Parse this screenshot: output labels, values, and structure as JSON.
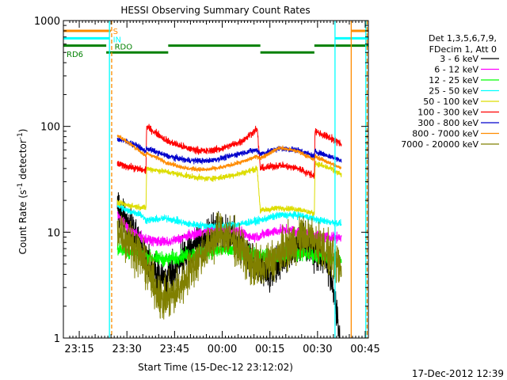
{
  "chart_data": {
    "type": "line",
    "title": "HESSI Observing Summary Count Rates",
    "xlabel": "Start Time (15-Dec-12 23:12:02)",
    "ylabel_main": "Count Rate (s",
    "ylabel_sup1": "-1",
    "ylabel_mid": " detector",
    "ylabel_sup2": "-1",
    "ylabel_end": ")",
    "yscale": "log",
    "ylim": [
      1,
      1000
    ],
    "xlim_minutes": [
      -2,
      94
    ],
    "x_ticks": [
      {
        "m": 3,
        "label": "23:15"
      },
      {
        "m": 18,
        "label": "23:30"
      },
      {
        "m": 33,
        "label": "23:45"
      },
      {
        "m": 48,
        "label": "00:00"
      },
      {
        "m": 63,
        "label": "00:15"
      },
      {
        "m": 78,
        "label": "00:30"
      },
      {
        "m": 93,
        "label": "00:45"
      }
    ],
    "y_ticks": [
      {
        "v": 1,
        "label": "1"
      },
      {
        "v": 10,
        "label": "10"
      },
      {
        "v": 100,
        "label": "100"
      },
      {
        "v": 1000,
        "label": "1000"
      }
    ],
    "footer_date": "17-Dec-2012 12:39",
    "legend": {
      "header": [
        "Det 1,3,5,6,7,9,",
        "FDecim 1, Att 0"
      ],
      "entries": [
        {
          "label": "3 - 6 keV",
          "color": "#000000"
        },
        {
          "label": "6 - 12 keV",
          "color": "#ff00ff"
        },
        {
          "label": "12 - 25 keV",
          "color": "#00ff00"
        },
        {
          "label": "25 - 50 keV",
          "color": "#00ffff"
        },
        {
          "label": "50 - 100 keV",
          "color": "#dddd00"
        },
        {
          "label": "100 - 300 keV",
          "color": "#ff0000"
        },
        {
          "label": "300 - 800 keV",
          "color": "#0000cc"
        },
        {
          "label": "800 - 7000 keV",
          "color": "#ff8c00"
        },
        {
          "label": "7000 - 20000 keV",
          "color": "#808000"
        }
      ]
    },
    "flag_labels": [
      {
        "label": "S",
        "color": "#ff8c00"
      },
      {
        "label": "IN",
        "color": "#00ffff"
      },
      {
        "label": "RDO",
        "color": "#008000"
      },
      {
        "label": "RD6",
        "color": "#008000"
      }
    ],
    "flags": {
      "saa": {
        "color": "#ff8c00",
        "intervals": [
          [
            -2,
            13
          ],
          [
            88.5,
            94
          ]
        ]
      },
      "night": {
        "color": "#00ffff",
        "intervals": [
          [
            -2,
            12.5
          ],
          [
            83.5,
            94
          ]
        ]
      },
      "rdo": {
        "color": "#008000",
        "intervals": [
          [
            -2,
            11.5
          ],
          [
            31,
            60
          ],
          [
            77,
            94
          ]
        ]
      },
      "rd6": {
        "color": "#008000",
        "intervals": [
          [
            11.5,
            31
          ],
          [
            60,
            77
          ]
        ]
      }
    },
    "vlines": [
      {
        "m": 12.5,
        "color": "#00ffff",
        "dash": false
      },
      {
        "m": 13.2,
        "color": "#ff8c00",
        "dash": true
      },
      {
        "m": 83.5,
        "color": "#00ffff",
        "dash": false
      },
      {
        "m": 88.6,
        "color": "#ff8c00",
        "dash": false
      },
      {
        "m": 93.2,
        "color": "#00ffff",
        "dash": false
      },
      {
        "m": 93.6,
        "color": "#ff8c00",
        "dash": true
      }
    ],
    "series": [
      {
        "color": "#000000",
        "noise": 0.25,
        "points": [
          [
            15,
            17
          ],
          [
            18,
            12
          ],
          [
            22,
            8
          ],
          [
            26,
            4.5
          ],
          [
            30,
            3.5
          ],
          [
            34,
            4.8
          ],
          [
            38,
            7
          ],
          [
            43,
            9
          ],
          [
            47,
            11
          ],
          [
            51,
            9
          ],
          [
            55,
            7
          ],
          [
            59,
            4.5
          ],
          [
            63,
            4
          ],
          [
            66,
            5
          ],
          [
            70,
            7
          ],
          [
            74,
            9
          ],
          [
            78,
            6
          ],
          [
            81,
            5.5
          ],
          [
            83,
            3
          ],
          [
            85,
            1
          ]
        ]
      },
      {
        "color": "#ff00ff",
        "noise": 0.07,
        "points": [
          [
            15,
            15
          ],
          [
            18,
            11
          ],
          [
            24,
            8.5
          ],
          [
            31,
            8
          ],
          [
            37,
            9.2
          ],
          [
            44,
            10.5
          ],
          [
            50,
            10.8
          ],
          [
            54,
            10
          ],
          [
            57,
            9
          ],
          [
            60,
            9.3
          ],
          [
            64,
            10.2
          ],
          [
            68,
            10.5
          ],
          [
            73,
            10
          ],
          [
            77,
            9.5
          ],
          [
            80,
            9
          ],
          [
            85.5,
            9
          ]
        ]
      },
      {
        "color": "#00ff00",
        "noise": 0.1,
        "points": [
          [
            15,
            7
          ],
          [
            20,
            6.5
          ],
          [
            25,
            5.8
          ],
          [
            31,
            5.5
          ],
          [
            36,
            6
          ],
          [
            42,
            6.5
          ],
          [
            48,
            6.8
          ],
          [
            54,
            6.5
          ],
          [
            59,
            6
          ],
          [
            64,
            6
          ],
          [
            70,
            6.3
          ],
          [
            75,
            6.2
          ],
          [
            80,
            5.8
          ],
          [
            85.5,
            5.5
          ]
        ]
      },
      {
        "color": "#00ffff",
        "noise": 0.05,
        "points": [
          [
            15,
            18
          ],
          [
            18,
            16
          ],
          [
            22,
            15
          ],
          [
            24,
            13
          ],
          [
            31,
            13.5
          ],
          [
            37,
            12
          ],
          [
            43,
            11.5
          ],
          [
            48,
            11.5
          ],
          [
            54,
            12
          ],
          [
            59,
            12.8
          ],
          [
            60,
            13
          ],
          [
            66,
            14.5
          ],
          [
            72,
            14.5
          ],
          [
            77,
            13.5
          ],
          [
            78,
            13
          ],
          [
            82,
            12.5
          ],
          [
            85.5,
            12
          ]
        ]
      },
      {
        "color": "#dddd00",
        "noise": 0.04,
        "points": [
          [
            15,
            19
          ],
          [
            18,
            18
          ],
          [
            21,
            17.5
          ],
          [
            24,
            17
          ],
          [
            24.2,
            40
          ],
          [
            31,
            37
          ],
          [
            37,
            34
          ],
          [
            43,
            32
          ],
          [
            48,
            33
          ],
          [
            54,
            36
          ],
          [
            59,
            40
          ],
          [
            60,
            16
          ],
          [
            66,
            17
          ],
          [
            72,
            16.5
          ],
          [
            77,
            15
          ],
          [
            77.2,
            45
          ],
          [
            82,
            40
          ],
          [
            85.5,
            35
          ]
        ]
      },
      {
        "color": "#ff0000",
        "noise": 0.05,
        "points": [
          [
            15,
            44
          ],
          [
            18,
            42
          ],
          [
            21,
            40
          ],
          [
            24,
            38
          ],
          [
            24.2,
            100
          ],
          [
            31,
            72
          ],
          [
            37,
            62
          ],
          [
            43,
            58
          ],
          [
            48,
            62
          ],
          [
            54,
            72
          ],
          [
            59,
            95
          ],
          [
            60,
            40
          ],
          [
            66,
            43
          ],
          [
            72,
            40
          ],
          [
            77,
            34
          ],
          [
            77.2,
            90
          ],
          [
            82,
            78
          ],
          [
            85.5,
            68
          ]
        ]
      },
      {
        "color": "#0000cc",
        "noise": 0.04,
        "points": [
          [
            15,
            76
          ],
          [
            18,
            72
          ],
          [
            21,
            66
          ],
          [
            24,
            58
          ],
          [
            24.2,
            62
          ],
          [
            31,
            52
          ],
          [
            37,
            48
          ],
          [
            43,
            47
          ],
          [
            48,
            50
          ],
          [
            54,
            56
          ],
          [
            59,
            60
          ],
          [
            60,
            55
          ],
          [
            66,
            62
          ],
          [
            72,
            60
          ],
          [
            77,
            52
          ],
          [
            77.2,
            58
          ],
          [
            82,
            52
          ],
          [
            85.5,
            48
          ]
        ]
      },
      {
        "color": "#ff8c00",
        "noise": 0.03,
        "points": [
          [
            15,
            82
          ],
          [
            18,
            72
          ],
          [
            21,
            62
          ],
          [
            24,
            52
          ],
          [
            24.2,
            56
          ],
          [
            31,
            45
          ],
          [
            37,
            40
          ],
          [
            43,
            39
          ],
          [
            48,
            41
          ],
          [
            54,
            46
          ],
          [
            59,
            52
          ],
          [
            60,
            50
          ],
          [
            66,
            63
          ],
          [
            72,
            58
          ],
          [
            77,
            48
          ],
          [
            77.2,
            52
          ],
          [
            82,
            45
          ],
          [
            85.5,
            40
          ]
        ]
      },
      {
        "color": "#808000",
        "noise": 0.3,
        "points": [
          [
            15,
            11
          ],
          [
            19,
            8
          ],
          [
            23,
            5.5
          ],
          [
            27,
            3
          ],
          [
            29,
            2.2
          ],
          [
            33,
            2.6
          ],
          [
            36,
            3.5
          ],
          [
            39,
            4.8
          ],
          [
            42,
            6.5
          ],
          [
            45,
            8.5
          ],
          [
            48,
            9.5
          ],
          [
            51,
            8.5
          ],
          [
            54,
            7
          ],
          [
            57,
            5
          ],
          [
            60,
            4.5
          ],
          [
            64,
            5.5
          ],
          [
            68,
            7
          ],
          [
            72,
            8.5
          ],
          [
            75,
            9
          ],
          [
            78,
            8
          ],
          [
            81,
            6.5
          ],
          [
            84,
            5
          ],
          [
            85.5,
            4.5
          ]
        ]
      }
    ]
  }
}
